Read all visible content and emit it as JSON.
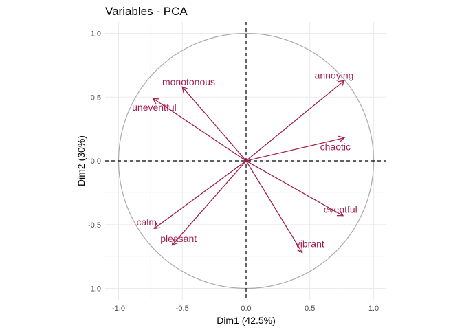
{
  "chart_data": {
    "type": "scatter",
    "title": "Variables - PCA",
    "xlabel": "Dim1 (42.5%)",
    "ylabel": "Dim2 (30%)",
    "xlim": [
      -1.0,
      1.0
    ],
    "ylim": [
      -1.0,
      1.0
    ],
    "x_ticks": [
      "-1.0",
      "-0.5",
      "0.0",
      "0.5",
      "1.0"
    ],
    "y_ticks": [
      "1.0",
      "0.5",
      "0.0",
      "-0.5",
      "-1.0"
    ],
    "grid": true,
    "unit_circle": true,
    "reference_lines": [
      0,
      0
    ],
    "arrow_color": "#A31F4F",
    "circle_color": "#aaaaaa",
    "variables": [
      {
        "name": "annoying",
        "x": 0.77,
        "y": 0.63,
        "label_x": 0.69,
        "label_y": 0.67
      },
      {
        "name": "monotonous",
        "x": -0.5,
        "y": 0.58,
        "label_x": -0.45,
        "label_y": 0.62
      },
      {
        "name": "uneventful",
        "x": -0.73,
        "y": 0.49,
        "label_x": -0.72,
        "label_y": 0.42
      },
      {
        "name": "chaotic",
        "x": 0.77,
        "y": 0.18,
        "label_x": 0.7,
        "label_y": 0.11
      },
      {
        "name": "eventful",
        "x": 0.76,
        "y": -0.43,
        "label_x": 0.74,
        "label_y": -0.38
      },
      {
        "name": "calm",
        "x": -0.72,
        "y": -0.53,
        "label_x": -0.78,
        "label_y": -0.48
      },
      {
        "name": "pleasant",
        "x": -0.58,
        "y": -0.66,
        "label_x": -0.53,
        "label_y": -0.61
      },
      {
        "name": "vibrant",
        "x": 0.44,
        "y": -0.72,
        "label_x": 0.5,
        "label_y": -0.65
      }
    ]
  }
}
